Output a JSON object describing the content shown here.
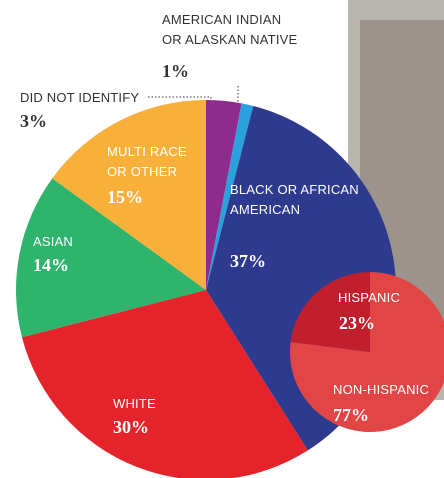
{
  "chart_data": [
    {
      "type": "pie",
      "categories": [
        "DID NOT IDENTIFY",
        "AMERICAN INDIAN\nOR ALASKAN NATIVE",
        "BLACK OR AFRICAN\nAMERICAN",
        "WHITE",
        "ASIAN",
        "MULTI RACE\nOR OTHER"
      ],
      "values": [
        3,
        1,
        37,
        30,
        14,
        15
      ],
      "value_labels": [
        "3%",
        "1%",
        "37%",
        "30%",
        "14%",
        "15%"
      ],
      "colors": [
        "#8e2c8e",
        "#2aa0dc",
        "#2e3a8e",
        "#e5232a",
        "#2fb46e",
        "#f9b03a"
      ]
    },
    {
      "type": "pie",
      "categories": [
        "HISPANIC",
        "NON-HISPANIC"
      ],
      "values": [
        23,
        77
      ],
      "value_labels": [
        "23%",
        "77%"
      ],
      "colors": [
        "#c11f2e",
        "#e14545"
      ],
      "counterclockwise": true
    }
  ]
}
